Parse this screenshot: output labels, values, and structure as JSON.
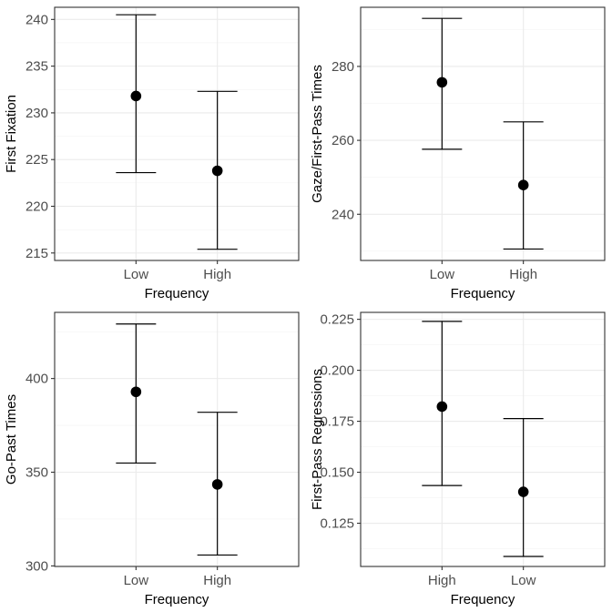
{
  "chart_data": [
    {
      "type": "errorbar",
      "xlabel": "Frequency",
      "ylabel": "First Fixation",
      "categories": [
        "Low",
        "High"
      ],
      "values": [
        231.8,
        223.8
      ],
      "lower": [
        223.6,
        215.4
      ],
      "upper": [
        240.5,
        232.3
      ],
      "yticks": [
        215,
        220,
        225,
        230,
        235,
        240
      ],
      "ylim": [
        214.2,
        241.3
      ],
      "grid": true
    },
    {
      "type": "errorbar",
      "xlabel": "Frequency",
      "ylabel": "Gaze/First-Pass Times",
      "categories": [
        "Low",
        "High"
      ],
      "values": [
        275.7,
        247.9
      ],
      "lower": [
        257.6,
        230.6
      ],
      "upper": [
        293.0,
        265.0
      ],
      "yticks": [
        240,
        260,
        280
      ],
      "ylim": [
        227.5,
        296.0
      ],
      "grid": true
    },
    {
      "type": "errorbar",
      "xlabel": "Frequency",
      "ylabel": "Go-Past Times",
      "categories": [
        "Low",
        "High"
      ],
      "values": [
        392.9,
        343.5
      ],
      "lower": [
        354.9,
        305.8
      ],
      "upper": [
        429.1,
        382.0
      ],
      "yticks": [
        300,
        350,
        400
      ],
      "ylim": [
        299.7,
        435.3
      ],
      "grid": true
    },
    {
      "type": "errorbar",
      "xlabel": "Frequency",
      "ylabel": "First-Pass Regressions",
      "categories": [
        "High",
        "Low"
      ],
      "values": [
        0.1822,
        0.1404
      ],
      "lower": [
        0.1435,
        0.1087
      ],
      "upper": [
        0.224,
        0.1763
      ],
      "yticks": [
        0.125,
        0.15,
        0.175,
        0.2,
        0.225
      ],
      "ytick_labels": [
        "0.125",
        "0.150",
        "0.175",
        "0.200",
        "0.225"
      ],
      "ylim": [
        0.1038,
        0.2284
      ],
      "grid": true
    }
  ]
}
